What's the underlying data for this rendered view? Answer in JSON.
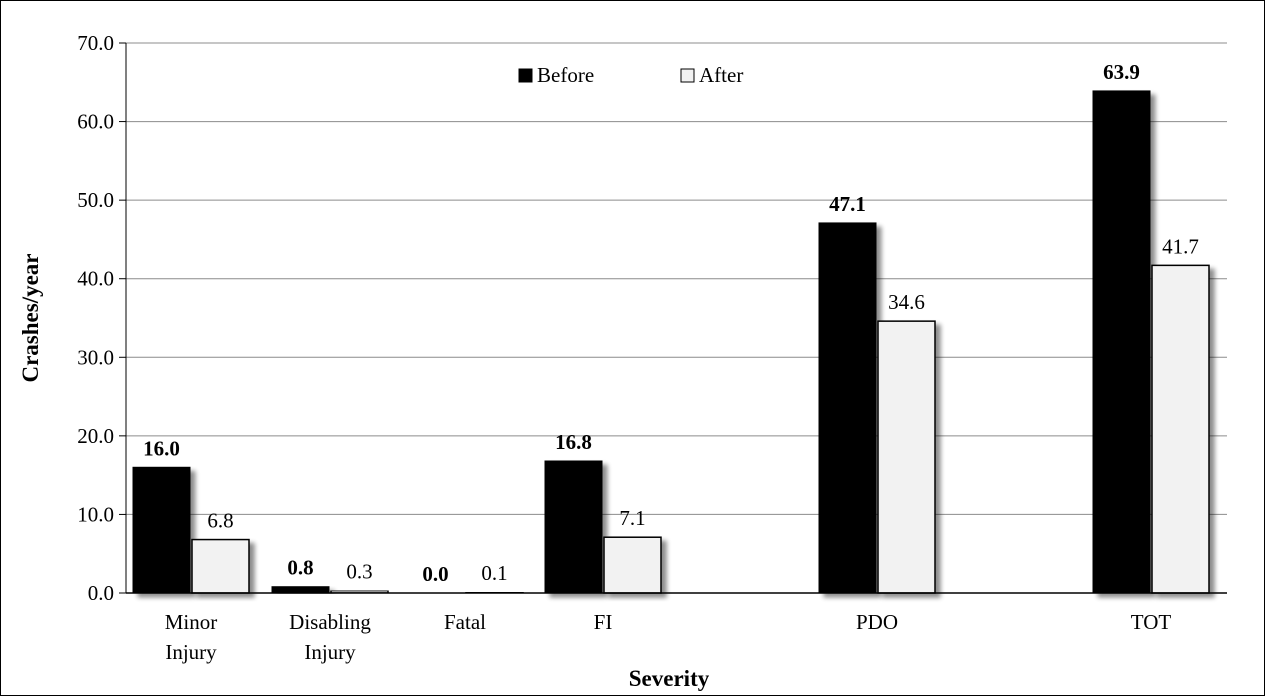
{
  "chart_data": {
    "type": "bar",
    "categories": [
      [
        "Minor",
        "Injury"
      ],
      [
        "Disabling",
        "Injury"
      ],
      [
        "Fatal"
      ],
      [
        "FI"
      ],
      [
        "PDO"
      ],
      [
        "TOT"
      ]
    ],
    "series": [
      {
        "name": "Before",
        "values": [
          16.0,
          0.8,
          0.0,
          16.8,
          47.1,
          63.9
        ],
        "labels": [
          "16.0",
          "0.8",
          "0.0",
          "16.8",
          "47.1",
          "63.9"
        ],
        "color": "#000000",
        "label_bold": true
      },
      {
        "name": "After",
        "values": [
          6.8,
          0.3,
          0.1,
          7.1,
          34.6,
          41.7
        ],
        "labels": [
          "6.8",
          "0.3",
          "0.1",
          "7.1",
          "34.6",
          "41.7"
        ],
        "color": "#f2f2f2",
        "label_bold": false
      }
    ],
    "xlabel": "Severity",
    "ylabel": "Crashes/year",
    "ylim": [
      0,
      70
    ],
    "yticks": [
      "0.0",
      "10.0",
      "20.0",
      "30.0",
      "40.0",
      "50.0",
      "60.0",
      "70.0"
    ],
    "grid": true,
    "legend": "top-center"
  }
}
